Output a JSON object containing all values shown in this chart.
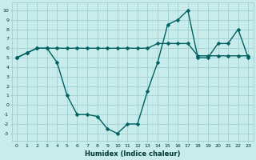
{
  "x": [
    0,
    1,
    2,
    3,
    4,
    5,
    6,
    7,
    8,
    9,
    10,
    11,
    12,
    13,
    14,
    15,
    16,
    17,
    18,
    19,
    20,
    21,
    22,
    23
  ],
  "line1_y": [
    5.0,
    5.5,
    6.0,
    6.0,
    4.5,
    1.0,
    -1.0,
    -1.0,
    -1.2,
    -2.5,
    -3.0,
    -2.0,
    -2.0,
    1.5,
    4.5,
    8.5,
    9.0,
    10.0,
    5.0,
    5.0,
    6.5,
    6.5,
    8.0,
    5.0
  ],
  "line2_y": [
    5.0,
    5.5,
    6.0,
    6.0,
    6.0,
    6.0,
    6.0,
    6.0,
    6.0,
    6.0,
    6.0,
    6.0,
    6.0,
    6.0,
    6.5,
    6.5,
    6.5,
    6.5,
    5.2,
    5.2,
    5.2,
    5.2,
    5.2,
    5.2
  ],
  "line_color": "#006060",
  "bg_color": "#c8ecec",
  "grid_color": "#a0d0d0",
  "xlabel": "Humidex (Indice chaleur)",
  "ylim": [
    -3.8,
    10.8
  ],
  "xlim": [
    -0.5,
    23.5
  ],
  "yticks": [
    -3,
    -2,
    -1,
    0,
    1,
    2,
    3,
    4,
    5,
    6,
    7,
    8,
    9,
    10
  ],
  "xticks": [
    0,
    1,
    2,
    3,
    4,
    5,
    6,
    7,
    8,
    9,
    10,
    11,
    12,
    13,
    14,
    15,
    16,
    17,
    18,
    19,
    20,
    21,
    22,
    23
  ],
  "markersize": 2.5,
  "linewidth": 1.0
}
